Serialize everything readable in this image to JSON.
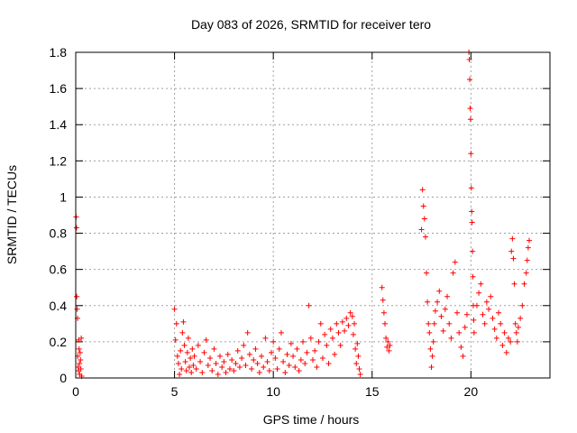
{
  "chart_data": {
    "type": "scatter",
    "title": "Day 083 of 2026, SRMTID for receiver tero",
    "xlabel": "GPS time / hours",
    "ylabel": "SRMTID / TECUs",
    "xlim": [
      0,
      24
    ],
    "ylim": [
      0,
      1.8
    ],
    "grid": true,
    "marker": "+",
    "color": "#ff0000",
    "xticks": [
      0,
      5,
      10,
      15,
      20
    ],
    "yticks": [
      0,
      0.2,
      0.4,
      0.6,
      0.8,
      1,
      1.2,
      1.4,
      1.6,
      1.8
    ],
    "xtick_labels": [
      "0",
      "5",
      "10",
      "15",
      "20"
    ],
    "ytick_labels": [
      "0",
      "0.2",
      "0.4",
      "0.6",
      "0.8",
      "1",
      "1.2",
      "1.4",
      "1.6",
      "1.8"
    ],
    "points": [
      [
        0.02,
        0.89
      ],
      [
        0.04,
        0.83
      ],
      [
        0.05,
        0.45
      ],
      [
        0.07,
        0.38
      ],
      [
        0.09,
        0.33
      ],
      [
        0.1,
        0.12
      ],
      [
        0.12,
        0.06
      ],
      [
        0.14,
        0.04
      ],
      [
        0.15,
        0.21
      ],
      [
        0.17,
        0.16
      ],
      [
        0.19,
        0.08
      ],
      [
        0.2,
        0.02
      ],
      [
        0.22,
        0.14
      ],
      [
        0.24,
        0.1
      ],
      [
        0.26,
        0.05
      ],
      [
        0.28,
        0.22
      ],
      [
        0.3,
        0.01
      ],
      [
        5.0,
        0.38
      ],
      [
        5.05,
        0.21
      ],
      [
        5.1,
        0.3
      ],
      [
        5.15,
        0.12
      ],
      [
        5.2,
        0.08
      ],
      [
        5.25,
        0.02
      ],
      [
        5.3,
        0.15
      ],
      [
        5.35,
        0.05
      ],
      [
        5.4,
        0.25
      ],
      [
        5.45,
        0.31
      ],
      [
        5.5,
        0.18
      ],
      [
        5.55,
        0.09
      ],
      [
        5.6,
        0.04
      ],
      [
        5.65,
        0.14
      ],
      [
        5.7,
        0.22
      ],
      [
        5.75,
        0.06
      ],
      [
        5.8,
        0.11
      ],
      [
        5.85,
        0.03
      ],
      [
        5.9,
        0.16
      ],
      [
        5.95,
        0.07
      ],
      [
        6.0,
        0.12
      ],
      [
        6.1,
        0.05
      ],
      [
        6.2,
        0.18
      ],
      [
        6.3,
        0.09
      ],
      [
        6.4,
        0.03
      ],
      [
        6.5,
        0.14
      ],
      [
        6.6,
        0.21
      ],
      [
        6.7,
        0.07
      ],
      [
        6.8,
        0.11
      ],
      [
        6.9,
        0.04
      ],
      [
        7.0,
        0.16
      ],
      [
        7.1,
        0.08
      ],
      [
        7.2,
        0.02
      ],
      [
        7.3,
        0.12
      ],
      [
        7.4,
        0.06
      ],
      [
        7.5,
        0.09
      ],
      [
        7.6,
        0.03
      ],
      [
        7.7,
        0.13
      ],
      [
        7.8,
        0.05
      ],
      [
        7.9,
        0.1
      ],
      [
        8.0,
        0.04
      ],
      [
        8.1,
        0.08
      ],
      [
        8.2,
        0.15
      ],
      [
        8.3,
        0.06
      ],
      [
        8.4,
        0.11
      ],
      [
        8.5,
        0.18
      ],
      [
        8.6,
        0.07
      ],
      [
        8.7,
        0.25
      ],
      [
        8.8,
        0.13
      ],
      [
        8.9,
        0.05
      ],
      [
        9.0,
        0.1
      ],
      [
        9.1,
        0.16
      ],
      [
        9.2,
        0.08
      ],
      [
        9.3,
        0.03
      ],
      [
        9.4,
        0.12
      ],
      [
        9.5,
        0.06
      ],
      [
        9.6,
        0.22
      ],
      [
        9.7,
        0.09
      ],
      [
        9.8,
        0.04
      ],
      [
        9.9,
        0.14
      ],
      [
        10.0,
        0.2
      ],
      [
        10.1,
        0.11
      ],
      [
        10.2,
        0.05
      ],
      [
        10.3,
        0.16
      ],
      [
        10.4,
        0.25
      ],
      [
        10.5,
        0.09
      ],
      [
        10.6,
        0.03
      ],
      [
        10.7,
        0.13
      ],
      [
        10.8,
        0.07
      ],
      [
        10.9,
        0.19
      ],
      [
        11.0,
        0.12
      ],
      [
        11.1,
        0.06
      ],
      [
        11.2,
        0.16
      ],
      [
        11.3,
        0.04
      ],
      [
        11.4,
        0.1
      ],
      [
        11.5,
        0.2
      ],
      [
        11.6,
        0.08
      ],
      [
        11.7,
        0.14
      ],
      [
        11.8,
        0.4
      ],
      [
        11.9,
        0.22
      ],
      [
        12.0,
        0.1
      ],
      [
        12.1,
        0.15
      ],
      [
        12.2,
        0.06
      ],
      [
        12.3,
        0.2
      ],
      [
        12.4,
        0.3
      ],
      [
        12.5,
        0.11
      ],
      [
        12.6,
        0.24
      ],
      [
        12.7,
        0.18
      ],
      [
        12.8,
        0.08
      ],
      [
        12.9,
        0.27
      ],
      [
        13.0,
        0.22
      ],
      [
        13.1,
        0.13
      ],
      [
        13.2,
        0.3
      ],
      [
        13.3,
        0.25
      ],
      [
        13.4,
        0.18
      ],
      [
        13.5,
        0.31
      ],
      [
        13.6,
        0.26
      ],
      [
        13.7,
        0.33
      ],
      [
        13.8,
        0.29
      ],
      [
        13.9,
        0.36
      ],
      [
        14.0,
        0.34
      ],
      [
        14.05,
        0.24
      ],
      [
        14.1,
        0.3
      ],
      [
        14.15,
        0.16
      ],
      [
        14.2,
        0.08
      ],
      [
        14.25,
        0.19
      ],
      [
        14.3,
        0.12
      ],
      [
        14.35,
        0.05
      ],
      [
        14.4,
        0.02
      ],
      [
        15.5,
        0.5
      ],
      [
        15.55,
        0.43
      ],
      [
        15.6,
        0.36
      ],
      [
        15.65,
        0.3
      ],
      [
        15.7,
        0.22
      ],
      [
        15.75,
        0.17
      ],
      [
        15.8,
        0.2
      ],
      [
        15.85,
        0.15
      ],
      [
        15.9,
        0.18
      ],
      [
        17.5,
        0.82
      ],
      [
        17.55,
        1.04
      ],
      [
        17.6,
        0.95
      ],
      [
        17.65,
        0.88
      ],
      [
        17.7,
        0.78
      ],
      [
        17.75,
        0.58
      ],
      [
        17.8,
        0.42
      ],
      [
        17.85,
        0.3
      ],
      [
        17.9,
        0.25
      ],
      [
        17.95,
        0.16
      ],
      [
        18.0,
        0.06
      ],
      [
        18.05,
        0.12
      ],
      [
        18.1,
        0.2
      ],
      [
        18.15,
        0.3
      ],
      [
        18.2,
        0.37
      ],
      [
        18.3,
        0.42
      ],
      [
        18.4,
        0.48
      ],
      [
        18.5,
        0.34
      ],
      [
        18.6,
        0.26
      ],
      [
        18.7,
        0.38
      ],
      [
        18.8,
        0.45
      ],
      [
        18.9,
        0.3
      ],
      [
        19.0,
        0.22
      ],
      [
        19.1,
        0.58
      ],
      [
        19.2,
        0.64
      ],
      [
        19.3,
        0.36
      ],
      [
        19.4,
        0.25
      ],
      [
        19.5,
        0.17
      ],
      [
        19.6,
        0.12
      ],
      [
        19.7,
        0.28
      ],
      [
        19.8,
        0.35
      ],
      [
        19.9,
        1.8
      ],
      [
        19.92,
        1.76
      ],
      [
        19.94,
        1.65
      ],
      [
        19.96,
        1.49
      ],
      [
        19.98,
        1.43
      ],
      [
        20.0,
        1.24
      ],
      [
        20.02,
        1.05
      ],
      [
        20.04,
        0.92
      ],
      [
        20.06,
        0.86
      ],
      [
        20.08,
        0.7
      ],
      [
        20.1,
        0.56
      ],
      [
        20.12,
        0.4
      ],
      [
        20.14,
        0.32
      ],
      [
        20.16,
        0.25
      ],
      [
        20.3,
        0.4
      ],
      [
        20.4,
        0.47
      ],
      [
        20.5,
        0.52
      ],
      [
        20.6,
        0.35
      ],
      [
        20.7,
        0.3
      ],
      [
        20.8,
        0.42
      ],
      [
        20.9,
        0.38
      ],
      [
        21.0,
        0.45
      ],
      [
        21.1,
        0.33
      ],
      [
        21.2,
        0.27
      ],
      [
        21.3,
        0.22
      ],
      [
        21.4,
        0.36
      ],
      [
        21.5,
        0.3
      ],
      [
        21.6,
        0.18
      ],
      [
        21.7,
        0.25
      ],
      [
        21.8,
        0.14
      ],
      [
        21.9,
        0.22
      ],
      [
        22.0,
        0.2
      ],
      [
        22.05,
        0.7
      ],
      [
        22.1,
        0.77
      ],
      [
        22.15,
        0.66
      ],
      [
        22.2,
        0.52
      ],
      [
        22.25,
        0.3
      ],
      [
        22.3,
        0.25
      ],
      [
        22.35,
        0.2
      ],
      [
        22.4,
        0.28
      ],
      [
        22.5,
        0.33
      ],
      [
        22.6,
        0.4
      ],
      [
        22.7,
        0.52
      ],
      [
        22.8,
        0.58
      ],
      [
        22.85,
        0.65
      ],
      [
        22.9,
        0.72
      ],
      [
        22.95,
        0.76
      ]
    ]
  }
}
